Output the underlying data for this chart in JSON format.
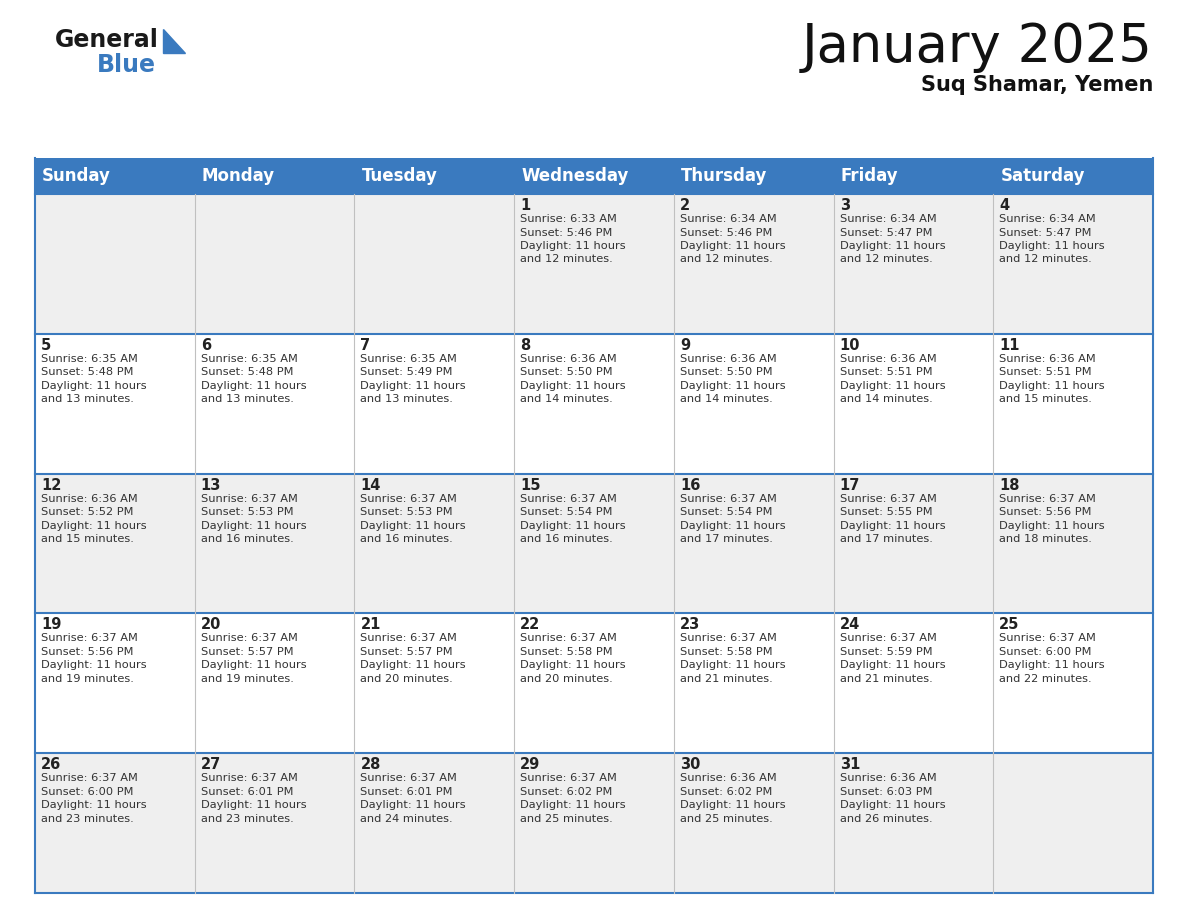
{
  "title": "January 2025",
  "subtitle": "Suq Shamar, Yemen",
  "header_color": "#3a7abf",
  "header_text_color": "#ffffff",
  "day_names": [
    "Sunday",
    "Monday",
    "Tuesday",
    "Wednesday",
    "Thursday",
    "Friday",
    "Saturday"
  ],
  "bg_color": "#ffffff",
  "cell_bg_even": "#efefef",
  "cell_bg_odd": "#ffffff",
  "cell_border_color": "#3a7abf",
  "grid_line_color": "#c0c0c0",
  "day_num_color": "#222222",
  "info_color": "#333333",
  "title_fontsize": 38,
  "subtitle_fontsize": 15,
  "header_fontsize": 12,
  "day_num_fontsize": 10.5,
  "info_fontsize": 8.2,
  "weeks": [
    {
      "days": [
        {
          "day": null,
          "sunrise": null,
          "sunset": null,
          "daylight": null
        },
        {
          "day": null,
          "sunrise": null,
          "sunset": null,
          "daylight": null
        },
        {
          "day": null,
          "sunrise": null,
          "sunset": null,
          "daylight": null
        },
        {
          "day": 1,
          "sunrise": "6:33 AM",
          "sunset": "5:46 PM",
          "daylight": "11 hours and 12 minutes."
        },
        {
          "day": 2,
          "sunrise": "6:34 AM",
          "sunset": "5:46 PM",
          "daylight": "11 hours and 12 minutes."
        },
        {
          "day": 3,
          "sunrise": "6:34 AM",
          "sunset": "5:47 PM",
          "daylight": "11 hours and 12 minutes."
        },
        {
          "day": 4,
          "sunrise": "6:34 AM",
          "sunset": "5:47 PM",
          "daylight": "11 hours and 12 minutes."
        }
      ]
    },
    {
      "days": [
        {
          "day": 5,
          "sunrise": "6:35 AM",
          "sunset": "5:48 PM",
          "daylight": "11 hours and 13 minutes."
        },
        {
          "day": 6,
          "sunrise": "6:35 AM",
          "sunset": "5:48 PM",
          "daylight": "11 hours and 13 minutes."
        },
        {
          "day": 7,
          "sunrise": "6:35 AM",
          "sunset": "5:49 PM",
          "daylight": "11 hours and 13 minutes."
        },
        {
          "day": 8,
          "sunrise": "6:36 AM",
          "sunset": "5:50 PM",
          "daylight": "11 hours and 14 minutes."
        },
        {
          "day": 9,
          "sunrise": "6:36 AM",
          "sunset": "5:50 PM",
          "daylight": "11 hours and 14 minutes."
        },
        {
          "day": 10,
          "sunrise": "6:36 AM",
          "sunset": "5:51 PM",
          "daylight": "11 hours and 14 minutes."
        },
        {
          "day": 11,
          "sunrise": "6:36 AM",
          "sunset": "5:51 PM",
          "daylight": "11 hours and 15 minutes."
        }
      ]
    },
    {
      "days": [
        {
          "day": 12,
          "sunrise": "6:36 AM",
          "sunset": "5:52 PM",
          "daylight": "11 hours and 15 minutes."
        },
        {
          "day": 13,
          "sunrise": "6:37 AM",
          "sunset": "5:53 PM",
          "daylight": "11 hours and 16 minutes."
        },
        {
          "day": 14,
          "sunrise": "6:37 AM",
          "sunset": "5:53 PM",
          "daylight": "11 hours and 16 minutes."
        },
        {
          "day": 15,
          "sunrise": "6:37 AM",
          "sunset": "5:54 PM",
          "daylight": "11 hours and 16 minutes."
        },
        {
          "day": 16,
          "sunrise": "6:37 AM",
          "sunset": "5:54 PM",
          "daylight": "11 hours and 17 minutes."
        },
        {
          "day": 17,
          "sunrise": "6:37 AM",
          "sunset": "5:55 PM",
          "daylight": "11 hours and 17 minutes."
        },
        {
          "day": 18,
          "sunrise": "6:37 AM",
          "sunset": "5:56 PM",
          "daylight": "11 hours and 18 minutes."
        }
      ]
    },
    {
      "days": [
        {
          "day": 19,
          "sunrise": "6:37 AM",
          "sunset": "5:56 PM",
          "daylight": "11 hours and 19 minutes."
        },
        {
          "day": 20,
          "sunrise": "6:37 AM",
          "sunset": "5:57 PM",
          "daylight": "11 hours and 19 minutes."
        },
        {
          "day": 21,
          "sunrise": "6:37 AM",
          "sunset": "5:57 PM",
          "daylight": "11 hours and 20 minutes."
        },
        {
          "day": 22,
          "sunrise": "6:37 AM",
          "sunset": "5:58 PM",
          "daylight": "11 hours and 20 minutes."
        },
        {
          "day": 23,
          "sunrise": "6:37 AM",
          "sunset": "5:58 PM",
          "daylight": "11 hours and 21 minutes."
        },
        {
          "day": 24,
          "sunrise": "6:37 AM",
          "sunset": "5:59 PM",
          "daylight": "11 hours and 21 minutes."
        },
        {
          "day": 25,
          "sunrise": "6:37 AM",
          "sunset": "6:00 PM",
          "daylight": "11 hours and 22 minutes."
        }
      ]
    },
    {
      "days": [
        {
          "day": 26,
          "sunrise": "6:37 AM",
          "sunset": "6:00 PM",
          "daylight": "11 hours and 23 minutes."
        },
        {
          "day": 27,
          "sunrise": "6:37 AM",
          "sunset": "6:01 PM",
          "daylight": "11 hours and 23 minutes."
        },
        {
          "day": 28,
          "sunrise": "6:37 AM",
          "sunset": "6:01 PM",
          "daylight": "11 hours and 24 minutes."
        },
        {
          "day": 29,
          "sunrise": "6:37 AM",
          "sunset": "6:02 PM",
          "daylight": "11 hours and 25 minutes."
        },
        {
          "day": 30,
          "sunrise": "6:36 AM",
          "sunset": "6:02 PM",
          "daylight": "11 hours and 25 minutes."
        },
        {
          "day": 31,
          "sunrise": "6:36 AM",
          "sunset": "6:03 PM",
          "daylight": "11 hours and 26 minutes."
        },
        {
          "day": null,
          "sunrise": null,
          "sunset": null,
          "daylight": null
        }
      ]
    }
  ]
}
